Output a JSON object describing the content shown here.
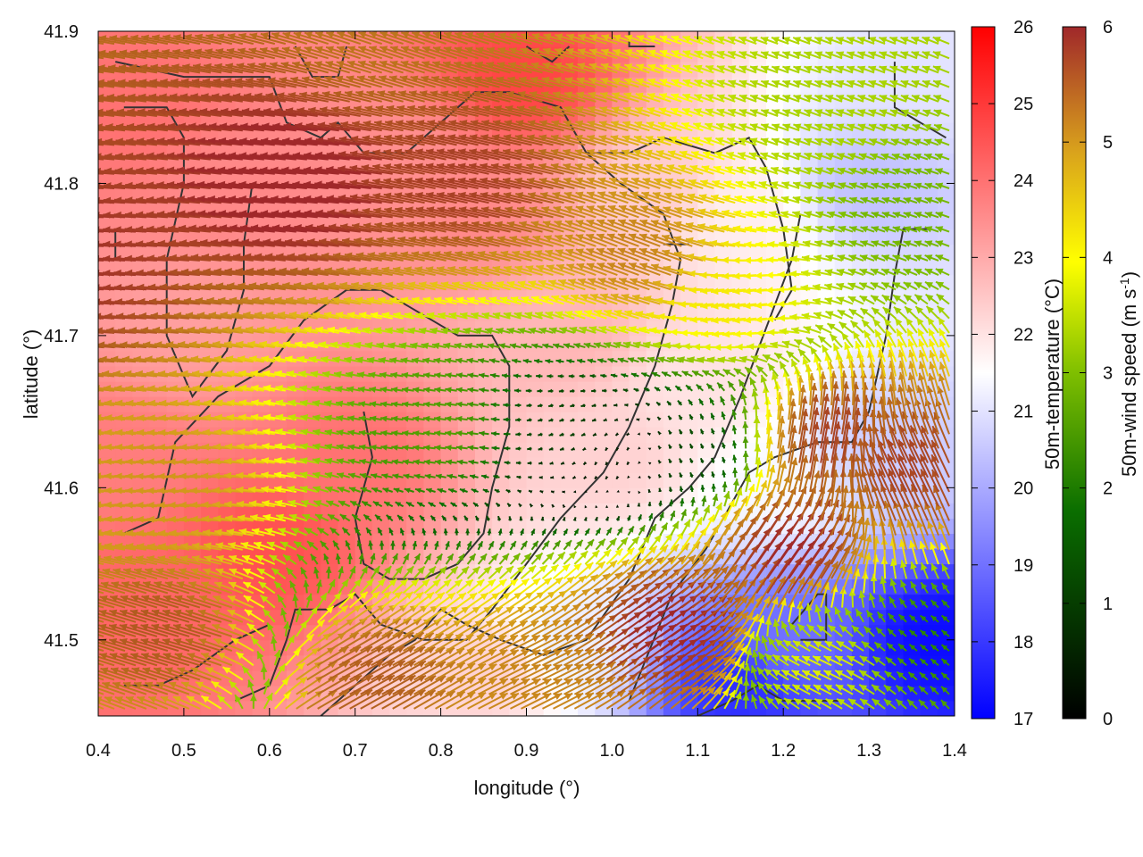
{
  "chart_data": {
    "type": "heatmap",
    "title": "",
    "xlabel": "longitude (°)",
    "ylabel": "latitude (°)",
    "xlim": [
      0.4,
      1.4
    ],
    "ylim": [
      41.45,
      41.9
    ],
    "x_ticks": [
      "0.4",
      "0.5",
      "0.6",
      "0.7",
      "0.8",
      "0.9",
      "1.0",
      "1.1",
      "1.2",
      "1.3",
      "1.4"
    ],
    "x_tick_values": [
      0.4,
      0.5,
      0.6,
      0.7,
      0.8,
      0.9,
      1.0,
      1.1,
      1.2,
      1.3,
      1.4
    ],
    "y_ticks": [
      "41.5",
      "41.6",
      "41.7",
      "41.8",
      "41.9"
    ],
    "y_tick_values": [
      41.5,
      41.6,
      41.7,
      41.8,
      41.9
    ],
    "temperature_colorbar": {
      "label": "50m-temperature (°C)",
      "range": [
        17,
        26
      ],
      "ticks": [
        "17",
        "18",
        "19",
        "20",
        "21",
        "22",
        "23",
        "24",
        "25",
        "26"
      ],
      "colors": [
        "#0000ff",
        "#ffffff",
        "#ff0000"
      ]
    },
    "wind_colorbar": {
      "label_prefix": "50m-wind speed (m s",
      "label_sup": "-1",
      "label_suffix": ")",
      "range": [
        0,
        6
      ],
      "ticks": [
        "0",
        "1",
        "2",
        "3",
        "4",
        "5",
        "6"
      ],
      "colors": [
        "#000000",
        "#0a6e00",
        "#7fbf00",
        "#ffff00",
        "#d9a21c",
        "#b5651d",
        "#a0282a"
      ]
    },
    "temperature_regions": [
      {
        "lon": 0.45,
        "lat": 41.85,
        "t": 24.0
      },
      {
        "lon": 0.55,
        "lat": 41.8,
        "t": 23.6
      },
      {
        "lon": 0.5,
        "lat": 41.7,
        "t": 23.2
      },
      {
        "lon": 0.6,
        "lat": 41.56,
        "t": 24.6
      },
      {
        "lon": 0.45,
        "lat": 41.52,
        "t": 24.2
      },
      {
        "lon": 0.7,
        "lat": 41.62,
        "t": 24.0
      },
      {
        "lon": 0.75,
        "lat": 41.82,
        "t": 23.5
      },
      {
        "lon": 0.85,
        "lat": 41.78,
        "t": 23.6
      },
      {
        "lon": 0.9,
        "lat": 41.87,
        "t": 24.8
      },
      {
        "lon": 0.95,
        "lat": 41.7,
        "t": 22.8
      },
      {
        "lon": 1.0,
        "lat": 41.62,
        "t": 22.3
      },
      {
        "lon": 1.05,
        "lat": 41.8,
        "t": 22.4
      },
      {
        "lon": 1.15,
        "lat": 41.78,
        "t": 21.8
      },
      {
        "lon": 1.3,
        "lat": 41.8,
        "t": 20.4
      },
      {
        "lon": 1.35,
        "lat": 41.87,
        "t": 21.0
      },
      {
        "lon": 1.2,
        "lat": 41.6,
        "t": 21.4
      },
      {
        "lon": 1.32,
        "lat": 41.62,
        "t": 20.6
      },
      {
        "lon": 1.2,
        "lat": 41.5,
        "t": 19.0
      },
      {
        "lon": 1.15,
        "lat": 41.47,
        "t": 17.8
      },
      {
        "lon": 1.38,
        "lat": 41.5,
        "t": 17.2
      },
      {
        "lon": 0.95,
        "lat": 41.5,
        "t": 21.2
      },
      {
        "lon": 0.85,
        "lat": 41.48,
        "t": 22.3
      },
      {
        "lon": 1.1,
        "lat": 41.67,
        "t": 22.0
      },
      {
        "lon": 0.42,
        "lat": 41.62,
        "t": 23.8
      }
    ],
    "wind_regions": [
      {
        "lon": 0.4,
        "lat": 41.75,
        "u": -5.8,
        "v": 0.3
      },
      {
        "lon": 0.65,
        "lat": 41.8,
        "u": -6.2,
        "v": 0.6
      },
      {
        "lon": 0.85,
        "lat": 41.8,
        "u": -5.5,
        "v": 1.2
      },
      {
        "lon": 0.75,
        "lat": 41.9,
        "u": -4.5,
        "v": 1.5
      },
      {
        "lon": 1.05,
        "lat": 41.75,
        "u": -4.2,
        "v": 1.6
      },
      {
        "lon": 1.25,
        "lat": 41.85,
        "u": -2.2,
        "v": 0.8
      },
      {
        "lon": 1.35,
        "lat": 41.78,
        "u": -1.8,
        "v": 0.6
      },
      {
        "lon": 1.15,
        "lat": 41.72,
        "u": -3.2,
        "v": -0.4
      },
      {
        "lon": 0.5,
        "lat": 41.6,
        "u": -4.2,
        "v": 0.2
      },
      {
        "lon": 0.5,
        "lat": 41.5,
        "u": -5.0,
        "v": 1.5
      },
      {
        "lon": 0.8,
        "lat": 41.64,
        "u": -1.6,
        "v": 0.2
      },
      {
        "lon": 0.95,
        "lat": 41.64,
        "u": -0.6,
        "v": -0.2
      },
      {
        "lon": 1.0,
        "lat": 41.62,
        "u": -0.1,
        "v": -0.3
      },
      {
        "lon": 1.1,
        "lat": 41.62,
        "u": -0.3,
        "v": 0.6
      },
      {
        "lon": 1.05,
        "lat": 41.5,
        "u": 5.0,
        "v": 3.5
      },
      {
        "lon": 0.9,
        "lat": 41.47,
        "u": 4.0,
        "v": 2.0
      },
      {
        "lon": 1.2,
        "lat": 41.55,
        "u": 3.5,
        "v": 5.0
      },
      {
        "lon": 1.25,
        "lat": 41.62,
        "u": 1.0,
        "v": 5.5
      },
      {
        "lon": 1.35,
        "lat": 41.6,
        "u": -2.5,
        "v": 5.0
      },
      {
        "lon": 1.38,
        "lat": 41.5,
        "u": -1.0,
        "v": 0.8
      },
      {
        "lon": 1.25,
        "lat": 41.48,
        "u": -2.5,
        "v": 1.2
      },
      {
        "lon": 0.7,
        "lat": 41.47,
        "u": 4.5,
        "v": 2.5
      }
    ],
    "wind_arrow_grid": {
      "lon_step": 0.0125,
      "lat_step": 0.0095
    },
    "boundaries": [
      [
        [
          0.42,
          41.88
        ],
        [
          0.5,
          41.87
        ],
        [
          0.56,
          41.87
        ],
        [
          0.6,
          41.87
        ],
        [
          0.62,
          41.84
        ],
        [
          0.66,
          41.83
        ],
        [
          0.68,
          41.84
        ],
        [
          0.71,
          41.82
        ],
        [
          0.76,
          41.82
        ],
        [
          0.8,
          41.84
        ],
        [
          0.84,
          41.86
        ],
        [
          0.88,
          41.86
        ],
        [
          0.94,
          41.85
        ],
        [
          0.97,
          41.82
        ],
        [
          1.02,
          41.82
        ],
        [
          1.06,
          41.83
        ],
        [
          1.12,
          41.82
        ],
        [
          1.16,
          41.83
        ],
        [
          1.18,
          41.81
        ],
        [
          1.2,
          41.77
        ],
        [
          1.21,
          41.73
        ],
        [
          1.19,
          41.71
        ]
      ],
      [
        [
          0.43,
          41.85
        ],
        [
          0.48,
          41.85
        ],
        [
          0.5,
          41.83
        ],
        [
          0.5,
          41.8
        ],
        [
          0.48,
          41.75
        ],
        [
          0.48,
          41.7
        ],
        [
          0.51,
          41.66
        ],
        [
          0.55,
          41.69
        ],
        [
          0.57,
          41.73
        ],
        [
          0.57,
          41.76
        ],
        [
          0.58,
          41.8
        ]
      ],
      [
        [
          0.43,
          41.57
        ],
        [
          0.47,
          41.58
        ],
        [
          0.49,
          41.63
        ],
        [
          0.54,
          41.66
        ],
        [
          0.6,
          41.68
        ],
        [
          0.64,
          41.71
        ],
        [
          0.69,
          41.73
        ],
        [
          0.73,
          41.73
        ],
        [
          0.76,
          41.72
        ],
        [
          0.79,
          41.71
        ],
        [
          0.82,
          41.7
        ],
        [
          0.86,
          41.7
        ],
        [
          0.88,
          41.68
        ],
        [
          0.88,
          41.64
        ],
        [
          0.86,
          41.6
        ],
        [
          0.85,
          41.57
        ],
        [
          0.82,
          41.55
        ],
        [
          0.78,
          41.54
        ],
        [
          0.74,
          41.54
        ],
        [
          0.71,
          41.55
        ],
        [
          0.7,
          41.58
        ],
        [
          0.72,
          41.62
        ],
        [
          0.71,
          41.65
        ]
      ],
      [
        [
          0.56,
          41.46
        ],
        [
          0.6,
          41.47
        ],
        [
          0.62,
          41.5
        ],
        [
          0.63,
          41.52
        ],
        [
          0.67,
          41.52
        ],
        [
          0.7,
          41.53
        ],
        [
          0.73,
          41.51
        ],
        [
          0.78,
          41.5
        ],
        [
          0.83,
          41.5
        ],
        [
          0.86,
          41.52
        ],
        [
          0.9,
          41.55
        ],
        [
          0.94,
          41.58
        ],
        [
          0.99,
          41.61
        ],
        [
          1.02,
          41.64
        ],
        [
          1.05,
          41.68
        ],
        [
          1.07,
          41.72
        ],
        [
          1.08,
          41.75
        ],
        [
          1.06,
          41.78
        ],
        [
          1.01,
          41.8
        ],
        [
          0.97,
          41.82
        ]
      ],
      [
        [
          0.66,
          41.45
        ],
        [
          0.7,
          41.47
        ],
        [
          0.74,
          41.49
        ],
        [
          0.77,
          41.5
        ],
        [
          0.8,
          41.52
        ],
        [
          0.83,
          41.51
        ],
        [
          0.87,
          41.5
        ],
        [
          0.92,
          41.49
        ],
        [
          0.97,
          41.5
        ],
        [
          1.02,
          41.54
        ],
        [
          1.05,
          41.58
        ],
        [
          1.09,
          41.6
        ],
        [
          1.12,
          41.62
        ],
        [
          1.15,
          41.66
        ],
        [
          1.17,
          41.69
        ],
        [
          1.19,
          41.72
        ],
        [
          1.21,
          41.75
        ],
        [
          1.22,
          41.78
        ]
      ],
      [
        [
          1.02,
          41.46
        ],
        [
          1.07,
          41.53
        ],
        [
          1.11,
          41.56
        ],
        [
          1.14,
          41.59
        ],
        [
          1.16,
          41.61
        ],
        [
          1.19,
          41.62
        ],
        [
          1.24,
          41.63
        ],
        [
          1.28,
          41.63
        ],
        [
          1.3,
          41.65
        ],
        [
          1.32,
          41.7
        ],
        [
          1.33,
          41.74
        ],
        [
          1.34,
          41.77
        ],
        [
          1.37,
          41.77
        ]
      ],
      [
        [
          1.1,
          41.45
        ],
        [
          1.14,
          41.46
        ],
        [
          1.17,
          41.47
        ],
        [
          1.2,
          41.46
        ],
        [
          1.24,
          41.46
        ],
        [
          1.27,
          41.46
        ]
      ],
      [
        [
          1.21,
          41.51
        ],
        [
          1.24,
          41.53
        ],
        [
          1.25,
          41.53
        ],
        [
          1.25,
          41.5
        ],
        [
          1.22,
          41.5
        ]
      ],
      [
        [
          0.43,
          41.47
        ],
        [
          0.47,
          41.47
        ],
        [
          0.51,
          41.48
        ],
        [
          0.56,
          41.5
        ],
        [
          0.6,
          41.51
        ]
      ],
      [
        [
          1.33,
          41.88
        ],
        [
          1.33,
          41.85
        ],
        [
          1.36,
          41.84
        ],
        [
          1.39,
          41.83
        ]
      ],
      [
        [
          0.9,
          41.89
        ],
        [
          0.93,
          41.88
        ],
        [
          0.95,
          41.89
        ]
      ],
      [
        [
          1.02,
          41.9
        ],
        [
          1.02,
          41.89
        ],
        [
          1.05,
          41.89
        ]
      ],
      [
        [
          0.42,
          41.77
        ],
        [
          0.42,
          41.75
        ]
      ],
      [
        [
          1.06,
          41.76
        ],
        [
          1.09,
          41.76
        ]
      ],
      [
        [
          0.63,
          41.89
        ],
        [
          0.65,
          41.87
        ],
        [
          0.68,
          41.87
        ],
        [
          0.69,
          41.89
        ]
      ]
    ]
  }
}
